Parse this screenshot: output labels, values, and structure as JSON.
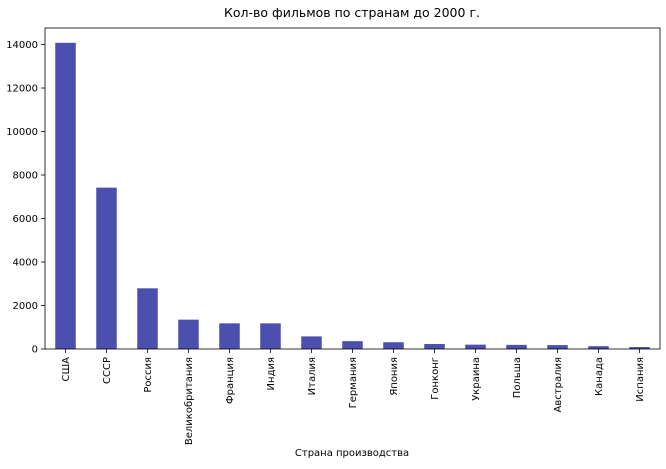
{
  "chart_data": {
    "type": "bar",
    "title": "Кол-во фильмов по странам до 2000 г.",
    "xlabel": "Страна производства",
    "ylabel": "",
    "categories": [
      "США",
      "СССР",
      "Россия",
      "Великобритания",
      "Франция",
      "Индия",
      "Италия",
      "Германия",
      "Япония",
      "Гонконг",
      "Украина",
      "Польша",
      "Австралия",
      "Канада",
      "Испания"
    ],
    "values": [
      14080,
      7420,
      2790,
      1350,
      1180,
      1180,
      580,
      360,
      310,
      230,
      200,
      190,
      180,
      130,
      90
    ],
    "ylim": [
      0,
      14760
    ],
    "yticks": [
      0,
      2000,
      4000,
      6000,
      8000,
      10000,
      12000,
      14000
    ],
    "grid": false,
    "legend": "none",
    "bar_color": "#4b4fae"
  }
}
